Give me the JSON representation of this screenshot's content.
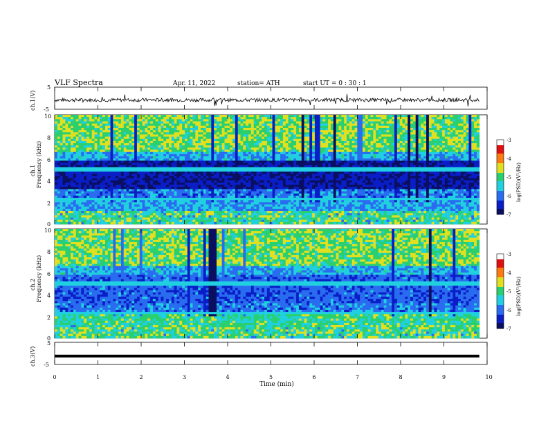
{
  "header": {
    "title": "VLF  Spectra",
    "date": "Apr. 11, 2022",
    "station": "station= ATH",
    "start": "start  UT  =    0  : 30 : 1"
  },
  "chart_data": [
    {
      "type": "line",
      "panel": "ch1-waveform",
      "ylabel": "ch.1(V)",
      "ylim": [
        -5,
        5
      ],
      "yticks": [
        "5",
        "-5"
      ],
      "xlim": [
        0,
        10
      ]
    },
    {
      "type": "heatmap",
      "panel": "ch1-spectrogram",
      "ylabel": "ch.1\nFrequency  (kHz)",
      "ylim": [
        0,
        10
      ],
      "yticks": [
        "0",
        "2",
        "4",
        "6",
        "8",
        "10"
      ],
      "xlim": [
        0,
        9.82
      ],
      "colorbar": {
        "label": "log(PSD)(V²/Hz)",
        "range": [
          -7,
          -3
        ],
        "ticks": [
          "-3",
          "-4",
          "-5",
          "-6",
          "-7"
        ]
      }
    },
    {
      "type": "heatmap",
      "panel": "ch2-spectrogram",
      "ylabel": "ch.2\nFrequency  (kHz)",
      "ylim": [
        0,
        10
      ],
      "yticks": [
        "0",
        "2",
        "4",
        "6",
        "8",
        "10"
      ],
      "xlim": [
        0,
        9.82
      ],
      "colorbar": {
        "label": "log(PSD)(V²/Hz)",
        "range": [
          -7,
          -3
        ],
        "ticks": [
          "-3",
          "-4",
          "-5",
          "-6",
          "-7"
        ]
      }
    },
    {
      "type": "line",
      "panel": "ch3-waveform",
      "ylabel": "ch.3(V)",
      "ylim": [
        -5,
        5
      ],
      "yticks": [
        "5",
        "-5"
      ],
      "x": [
        0,
        9.82
      ],
      "values": [
        -1.2,
        -1.2
      ],
      "xlabel": "Time  (min)",
      "xticks": [
        "0",
        "1",
        "2",
        "3",
        "4",
        "5",
        "6",
        "7",
        "8",
        "9",
        "10"
      ]
    }
  ],
  "colors": {
    "axis": "#000000",
    "waveform": "#000000",
    "colormap": [
      "#000000",
      "#0a0f60",
      "#0a1ec8",
      "#2a6cf0",
      "#20d0e0",
      "#2ad070",
      "#e0e020",
      "#ff7a10",
      "#e01010",
      "#ffffff"
    ]
  }
}
